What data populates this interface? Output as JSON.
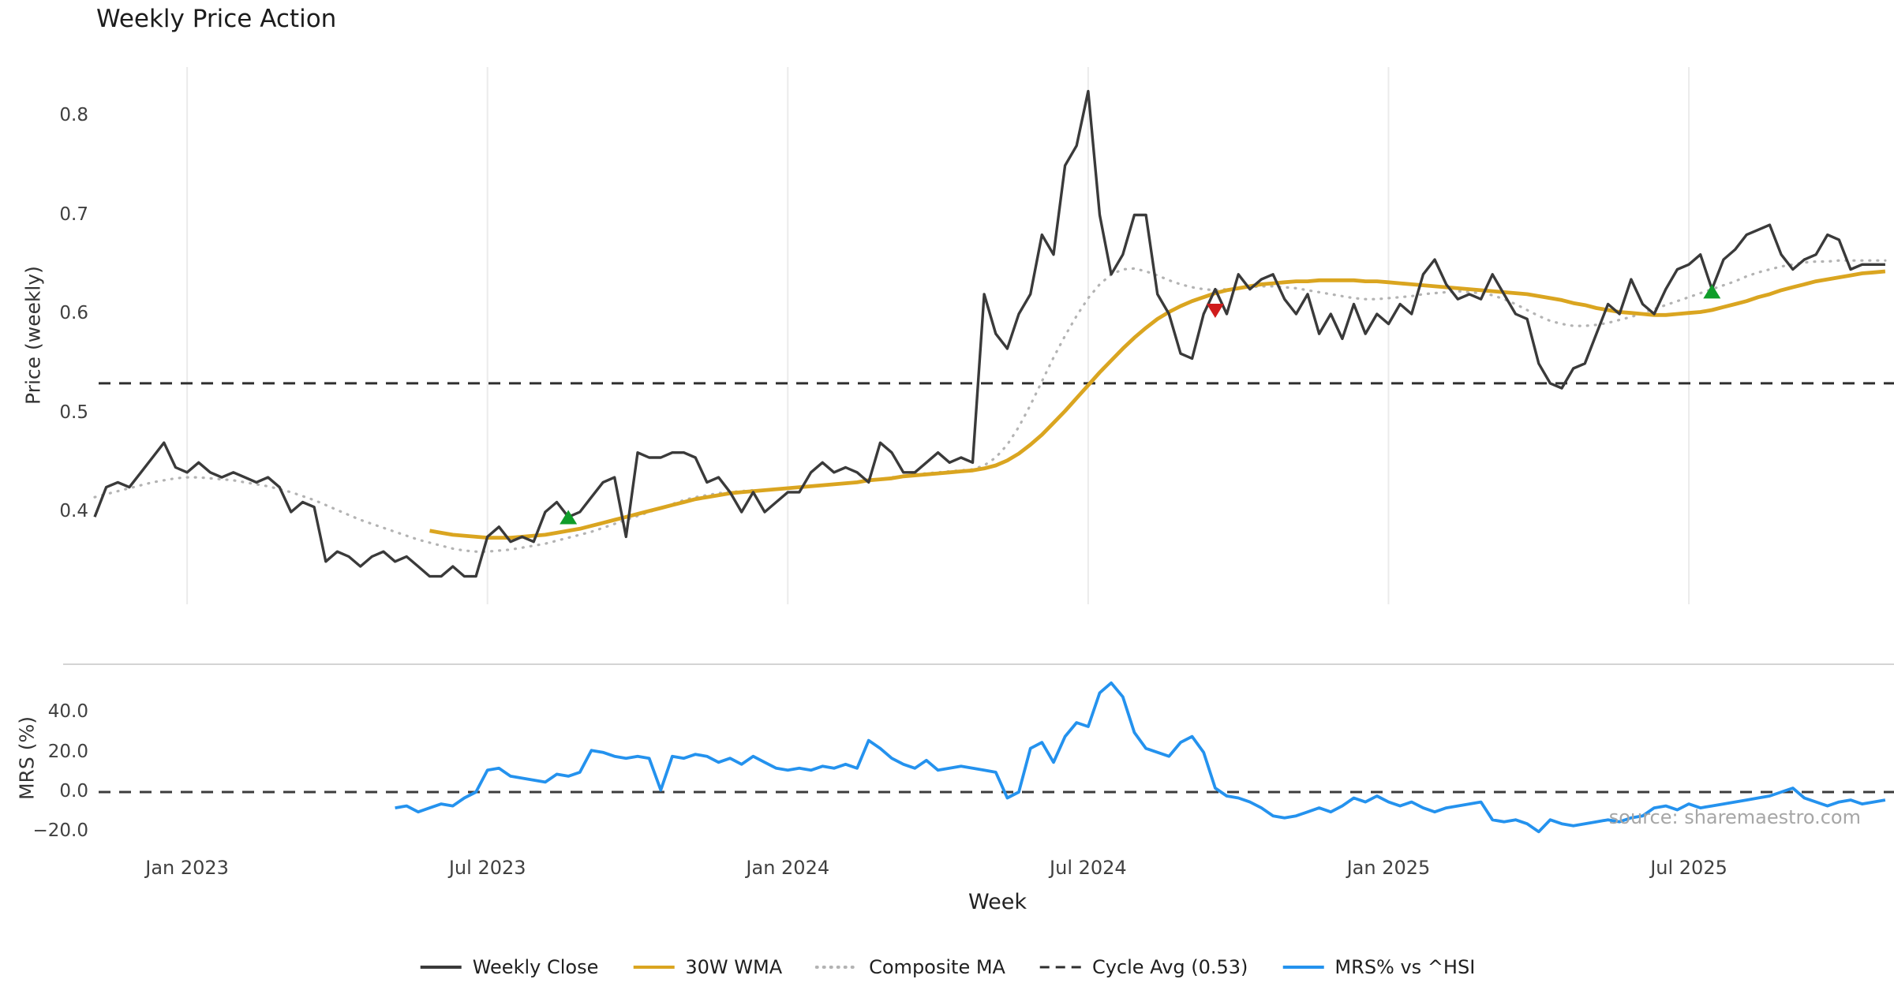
{
  "title": "Weekly Price Action",
  "watermark": "source: sharemaestro.com",
  "axes": {
    "x": {
      "label": "Week",
      "ticks": [
        {
          "week": 8,
          "label": "Jan 2023"
        },
        {
          "week": 34,
          "label": "Jul 2023"
        },
        {
          "week": 60,
          "label": "Jan 2024"
        },
        {
          "week": 86,
          "label": "Jul 2024"
        },
        {
          "week": 112,
          "label": "Jan 2025"
        },
        {
          "week": 138,
          "label": "Jul 2025"
        }
      ]
    },
    "price": {
      "label": "Price (weekly)",
      "range": [
        0.3,
        0.85
      ],
      "ticks": [
        {
          "v": 0.4,
          "label": "0.4"
        },
        {
          "v": 0.5,
          "label": "0.5"
        },
        {
          "v": 0.6,
          "label": "0.6"
        },
        {
          "v": 0.7,
          "label": "0.7"
        },
        {
          "v": 0.8,
          "label": "0.8"
        }
      ]
    },
    "mrs": {
      "label": "MRS (%)",
      "range": [
        -30,
        64
      ],
      "ticks": [
        {
          "v": -20,
          "label": "−20.0"
        },
        {
          "v": 0,
          "label": "0.0"
        },
        {
          "v": 20,
          "label": "20.0"
        },
        {
          "v": 40,
          "label": "40.0"
        }
      ]
    }
  },
  "chart_data": {
    "type": "line",
    "x_unit": "week index (week 0 ≈ late Nov 2022, weekly close data)",
    "panels": [
      {
        "name": "price",
        "series": [
          {
            "name": "Cycle Avg",
            "color": "#2e2e2e",
            "style": "dashed",
            "width": 3,
            "constant": 0.53
          },
          {
            "name": "Composite MA",
            "color": "#b3b3b3",
            "style": "dotted",
            "width": 3.2,
            "start_week": 0,
            "values": [
              0.415,
              0.418,
              0.421,
              0.424,
              0.427,
              0.43,
              0.432,
              0.434,
              0.435,
              0.435,
              0.434,
              0.433,
              0.432,
              0.43,
              0.428,
              0.426,
              0.423,
              0.42,
              0.416,
              0.412,
              0.407,
              0.402,
              0.397,
              0.392,
              0.388,
              0.384,
              0.38,
              0.376,
              0.372,
              0.369,
              0.366,
              0.363,
              0.361,
              0.36,
              0.36,
              0.361,
              0.362,
              0.364,
              0.366,
              0.368,
              0.371,
              0.374,
              0.377,
              0.38,
              0.384,
              0.388,
              0.392,
              0.396,
              0.4,
              0.404,
              0.408,
              0.412,
              0.415,
              0.417,
              0.419,
              0.42,
              0.421,
              0.422,
              0.422,
              0.423,
              0.424,
              0.425,
              0.426,
              0.427,
              0.428,
              0.429,
              0.43,
              0.432,
              0.433,
              0.435,
              0.436,
              0.438,
              0.439,
              0.44,
              0.441,
              0.442,
              0.443,
              0.447,
              0.455,
              0.468,
              0.486,
              0.508,
              0.532,
              0.556,
              0.578,
              0.598,
              0.616,
              0.63,
              0.64,
              0.645,
              0.646,
              0.643,
              0.639,
              0.634,
              0.63,
              0.627,
              0.625,
              0.624,
              0.625,
              0.626,
              0.627,
              0.628,
              0.628,
              0.627,
              0.626,
              0.624,
              0.622,
              0.62,
              0.618,
              0.616,
              0.615,
              0.615,
              0.616,
              0.617,
              0.618,
              0.62,
              0.621,
              0.622,
              0.623,
              0.622,
              0.621,
              0.619,
              0.615,
              0.61,
              0.604,
              0.598,
              0.593,
              0.59,
              0.588,
              0.588,
              0.589,
              0.591,
              0.594,
              0.597,
              0.601,
              0.605,
              0.609,
              0.613,
              0.617,
              0.621,
              0.625,
              0.629,
              0.633,
              0.638,
              0.642,
              0.645,
              0.648,
              0.65,
              0.652,
              0.653,
              0.653,
              0.654,
              0.654,
              0.654,
              0.654,
              0.654
            ]
          },
          {
            "name": "30W WMA",
            "color": "#DAA520",
            "style": "solid",
            "width": 4.8,
            "start_week": 29,
            "values": [
              0.381,
              0.379,
              0.377,
              0.376,
              0.375,
              0.374,
              0.374,
              0.374,
              0.375,
              0.376,
              0.377,
              0.379,
              0.381,
              0.383,
              0.386,
              0.389,
              0.392,
              0.395,
              0.398,
              0.401,
              0.404,
              0.407,
              0.41,
              0.413,
              0.415,
              0.417,
              0.419,
              0.42,
              0.421,
              0.422,
              0.423,
              0.424,
              0.425,
              0.426,
              0.427,
              0.428,
              0.429,
              0.43,
              0.432,
              0.433,
              0.434,
              0.436,
              0.437,
              0.438,
              0.439,
              0.44,
              0.441,
              0.442,
              0.444,
              0.447,
              0.452,
              0.459,
              0.468,
              0.478,
              0.49,
              0.502,
              0.515,
              0.528,
              0.541,
              0.553,
              0.565,
              0.576,
              0.586,
              0.595,
              0.602,
              0.608,
              0.613,
              0.617,
              0.621,
              0.624,
              0.626,
              0.628,
              0.63,
              0.631,
              0.632,
              0.633,
              0.633,
              0.634,
              0.634,
              0.634,
              0.634,
              0.633,
              0.633,
              0.632,
              0.631,
              0.63,
              0.629,
              0.628,
              0.627,
              0.626,
              0.625,
              0.624,
              0.623,
              0.622,
              0.621,
              0.62,
              0.618,
              0.616,
              0.614,
              0.611,
              0.609,
              0.606,
              0.604,
              0.602,
              0.601,
              0.6,
              0.599,
              0.599,
              0.6,
              0.601,
              0.602,
              0.604,
              0.607,
              0.61,
              0.613,
              0.617,
              0.62,
              0.624,
              0.627,
              0.63,
              0.633,
              0.635,
              0.637,
              0.639,
              0.641,
              0.642,
              0.643
            ]
          },
          {
            "name": "Weekly Close",
            "color": "#3a3a3a",
            "style": "solid",
            "width": 3.4,
            "start_week": 0,
            "values": [
              0.395,
              0.425,
              0.43,
              0.425,
              0.44,
              0.455,
              0.47,
              0.445,
              0.44,
              0.45,
              0.44,
              0.435,
              0.44,
              0.435,
              0.43,
              0.435,
              0.425,
              0.4,
              0.41,
              0.405,
              0.35,
              0.36,
              0.355,
              0.345,
              0.355,
              0.36,
              0.35,
              0.355,
              0.345,
              0.335,
              0.335,
              0.345,
              0.335,
              0.335,
              0.375,
              0.385,
              0.37,
              0.375,
              0.37,
              0.4,
              0.41,
              0.395,
              0.4,
              0.415,
              0.43,
              0.435,
              0.375,
              0.46,
              0.455,
              0.455,
              0.46,
              0.46,
              0.455,
              0.43,
              0.435,
              0.42,
              0.4,
              0.42,
              0.4,
              0.41,
              0.42,
              0.42,
              0.44,
              0.45,
              0.44,
              0.445,
              0.44,
              0.43,
              0.47,
              0.46,
              0.44,
              0.44,
              0.45,
              0.46,
              0.45,
              0.455,
              0.45,
              0.62,
              0.58,
              0.565,
              0.6,
              0.62,
              0.68,
              0.66,
              0.75,
              0.77,
              0.825,
              0.7,
              0.64,
              0.66,
              0.7,
              0.7,
              0.62,
              0.6,
              0.56,
              0.555,
              0.6,
              0.625,
              0.6,
              0.64,
              0.625,
              0.635,
              0.64,
              0.615,
              0.6,
              0.62,
              0.58,
              0.6,
              0.575,
              0.61,
              0.58,
              0.6,
              0.59,
              0.61,
              0.6,
              0.64,
              0.655,
              0.63,
              0.615,
              0.62,
              0.615,
              0.64,
              0.62,
              0.6,
              0.595,
              0.55,
              0.53,
              0.525,
              0.545,
              0.55,
              0.58,
              0.61,
              0.6,
              0.635,
              0.61,
              0.6,
              0.625,
              0.645,
              0.65,
              0.66,
              0.625,
              0.655,
              0.665,
              0.68,
              0.685,
              0.69,
              0.66,
              0.645,
              0.655,
              0.66,
              0.68,
              0.675,
              0.645,
              0.65,
              0.65,
              0.65
            ]
          }
        ],
        "markers": {
          "buy": {
            "color": "#0f9d2a",
            "points": [
              {
                "week": 41,
                "value": 0.394
              },
              {
                "week": 140,
                "value": 0.622
              }
            ]
          },
          "sell": {
            "color": "#d01c1c",
            "points": [
              {
                "week": 97,
                "value": 0.604
              }
            ]
          }
        }
      },
      {
        "name": "mrs",
        "series": [
          {
            "name": "Zero Line",
            "color": "#3c3c3c",
            "style": "dashed",
            "width": 3,
            "constant": 0
          },
          {
            "name": "MRS% vs ^HSI",
            "color": "#2492ee",
            "style": "solid",
            "width": 3.8,
            "start_week": 26,
            "values": [
              -8,
              -7,
              -10,
              -8,
              -6,
              -7,
              -3,
              0,
              11,
              12,
              8,
              7,
              6,
              5,
              9,
              8,
              10,
              21,
              20,
              18,
              17,
              18,
              17,
              1,
              18,
              17,
              19,
              18,
              15,
              17,
              14,
              18,
              15,
              12,
              11,
              12,
              11,
              13,
              12,
              14,
              12,
              26,
              22,
              17,
              14,
              12,
              16,
              11,
              12,
              13,
              12,
              11,
              10,
              -3,
              0,
              22,
              25,
              15,
              28,
              35,
              33,
              50,
              55,
              48,
              30,
              22,
              20,
              18,
              25,
              28,
              20,
              2,
              -2,
              -3,
              -5,
              -8,
              -12,
              -13,
              -12,
              -10,
              -8,
              -10,
              -7,
              -3,
              -5,
              -2,
              -5,
              -7,
              -5,
              -8,
              -10,
              -8,
              -7,
              -6,
              -5,
              -14,
              -15,
              -14,
              -16,
              -20,
              -14,
              -16,
              -17,
              -16,
              -15,
              -14,
              -15,
              -13,
              -12,
              -8,
              -7,
              -9,
              -6,
              -8,
              -7,
              -6,
              -5,
              -4,
              -3,
              -2,
              0,
              2,
              -3,
              -5,
              -7,
              -5,
              -4,
              -6,
              -5,
              -4
            ]
          }
        ]
      }
    ]
  },
  "legend": {
    "items": [
      {
        "label": "Weekly Close",
        "color": "#3a3a3a",
        "style": "solid"
      },
      {
        "label": "30W WMA",
        "color": "#DAA520",
        "style": "solid"
      },
      {
        "label": "Composite MA",
        "color": "#b3b3b3",
        "style": "dotted"
      },
      {
        "label": "Cycle Avg (0.53)",
        "color": "#2e2e2e",
        "style": "dashed"
      },
      {
        "label": "MRS% vs ^HSI",
        "color": "#2492ee",
        "style": "solid"
      }
    ]
  }
}
